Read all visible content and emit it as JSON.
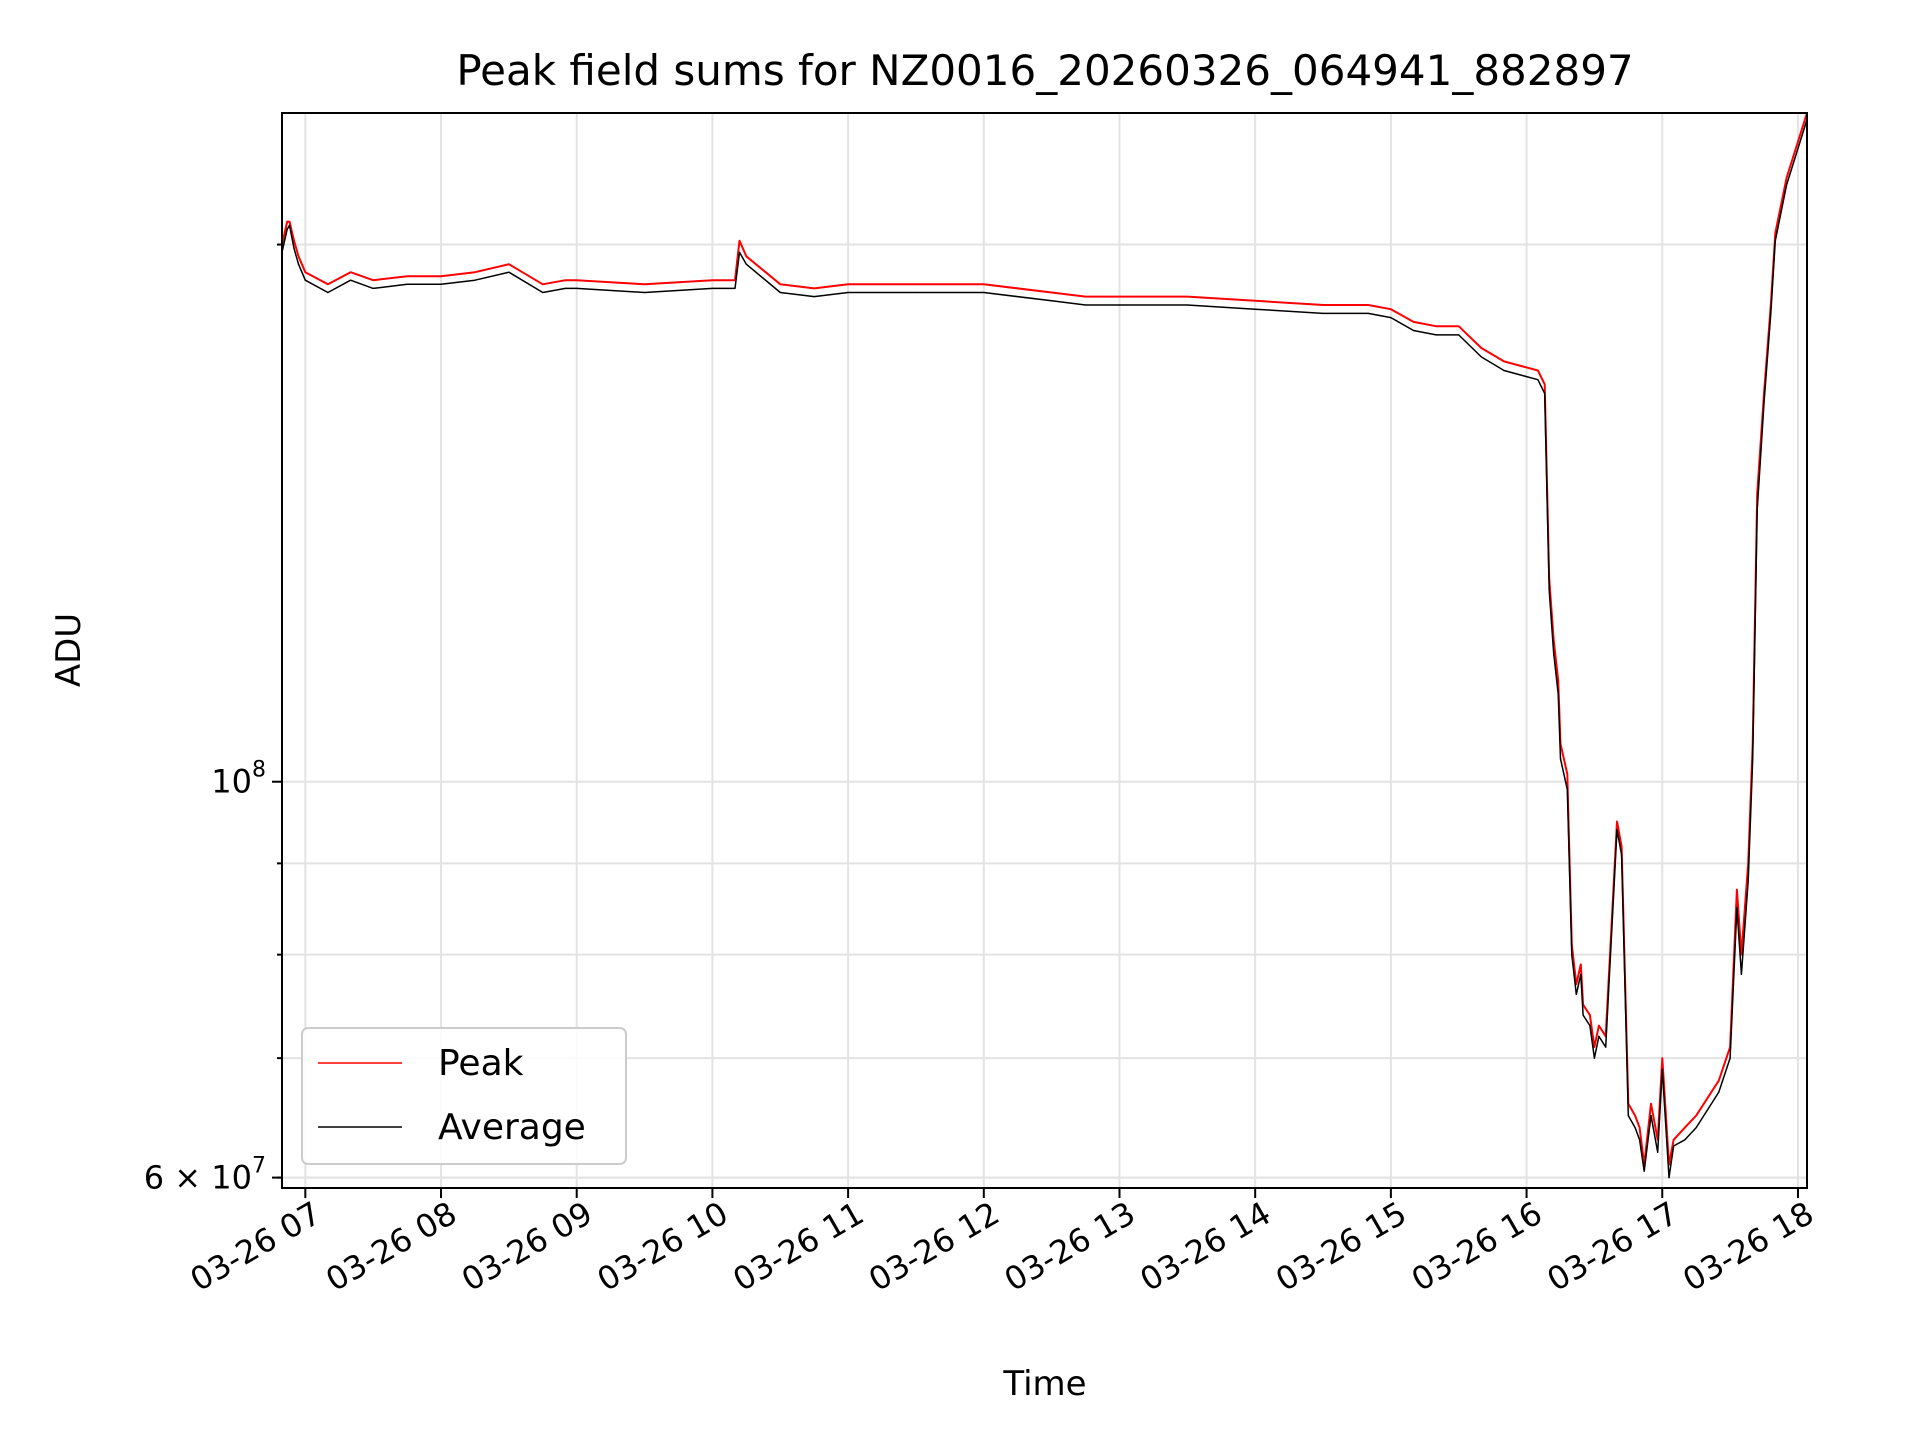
{
  "chart_data": {
    "type": "line",
    "title": "Peak field sums for NZ0016_20260326_064941_882897",
    "xlabel": "Time",
    "ylabel": "ADU",
    "yscale": "log",
    "xlim": [
      "2026-03-26T06:49:41",
      "2026-03-26T18:04:00"
    ],
    "ylim": [
      59200000,
      237000000
    ],
    "grid": true,
    "legend_position": "lower-left",
    "x_ticks": [
      {
        "time": "2026-03-26T07:00:00",
        "label": "03-26 07"
      },
      {
        "time": "2026-03-26T08:00:00",
        "label": "03-26 08"
      },
      {
        "time": "2026-03-26T09:00:00",
        "label": "03-26 09"
      },
      {
        "time": "2026-03-26T10:00:00",
        "label": "03-26 10"
      },
      {
        "time": "2026-03-26T11:00:00",
        "label": "03-26 11"
      },
      {
        "time": "2026-03-26T12:00:00",
        "label": "03-26 12"
      },
      {
        "time": "2026-03-26T13:00:00",
        "label": "03-26 13"
      },
      {
        "time": "2026-03-26T14:00:00",
        "label": "03-26 14"
      },
      {
        "time": "2026-03-26T15:00:00",
        "label": "03-26 15"
      },
      {
        "time": "2026-03-26T16:00:00",
        "label": "03-26 16"
      },
      {
        "time": "2026-03-26T17:00:00",
        "label": "03-26 17"
      },
      {
        "time": "2026-03-26T18:00:00",
        "label": "03-26 18"
      }
    ],
    "y_major_ticks": [
      {
        "value": 100000000,
        "label_base": "10",
        "label_exp": "8"
      },
      {
        "value": 60000000,
        "label_mant": "6 × 10",
        "label_exp": "7"
      }
    ],
    "y_minor_ticks": [
      60000000,
      70000000,
      80000000,
      90000000,
      200000000
    ],
    "series": [
      {
        "name": "Peak",
        "color": "#ff0000",
        "x": [
          "2026-03-26T06:49:41",
          "2026-03-26T06:52:00",
          "2026-03-26T06:53:00",
          "2026-03-26T06:55:00",
          "2026-03-26T06:57:00",
          "2026-03-26T07:00:00",
          "2026-03-26T07:10:00",
          "2026-03-26T07:20:00",
          "2026-03-26T07:30:00",
          "2026-03-26T07:45:00",
          "2026-03-26T08:00:00",
          "2026-03-26T08:15:00",
          "2026-03-26T08:30:00",
          "2026-03-26T08:45:00",
          "2026-03-26T08:55:00",
          "2026-03-26T09:00:00",
          "2026-03-26T09:30:00",
          "2026-03-26T10:00:00",
          "2026-03-26T10:10:00",
          "2026-03-26T10:12:00",
          "2026-03-26T10:15:00",
          "2026-03-26T10:30:00",
          "2026-03-26T10:45:00",
          "2026-03-26T11:00:00",
          "2026-03-26T11:30:00",
          "2026-03-26T12:00:00",
          "2026-03-26T12:30:00",
          "2026-03-26T12:45:00",
          "2026-03-26T13:00:00",
          "2026-03-26T13:30:00",
          "2026-03-26T14:00:00",
          "2026-03-26T14:30:00",
          "2026-03-26T14:50:00",
          "2026-03-26T15:00:00",
          "2026-03-26T15:10:00",
          "2026-03-26T15:20:00",
          "2026-03-26T15:30:00",
          "2026-03-26T15:40:00",
          "2026-03-26T15:50:00",
          "2026-03-26T16:05:00",
          "2026-03-26T16:08:00",
          "2026-03-26T16:10:00",
          "2026-03-26T16:12:00",
          "2026-03-26T16:14:00",
          "2026-03-26T16:15:00",
          "2026-03-26T16:18:00",
          "2026-03-26T16:20:00",
          "2026-03-26T16:22:00",
          "2026-03-26T16:24:00",
          "2026-03-26T16:25:00",
          "2026-03-26T16:28:00",
          "2026-03-26T16:30:00",
          "2026-03-26T16:32:00",
          "2026-03-26T16:35:00",
          "2026-03-26T16:40:00",
          "2026-03-26T16:42:00",
          "2026-03-26T16:45:00",
          "2026-03-26T16:48:00",
          "2026-03-26T16:50:00",
          "2026-03-26T16:52:00",
          "2026-03-26T16:55:00",
          "2026-03-26T16:58:00",
          "2026-03-26T17:00:00",
          "2026-03-26T17:03:00",
          "2026-03-26T17:05:00",
          "2026-03-26T17:10:00",
          "2026-03-26T17:15:00",
          "2026-03-26T17:25:00",
          "2026-03-26T17:30:00",
          "2026-03-26T17:33:00",
          "2026-03-26T17:35:00",
          "2026-03-26T17:38:00",
          "2026-03-26T17:40:00",
          "2026-03-26T17:42:00",
          "2026-03-26T17:45:00",
          "2026-03-26T17:48:00",
          "2026-03-26T17:50:00",
          "2026-03-26T17:55:00",
          "2026-03-26T18:04:00"
        ],
        "values": [
          200000000,
          206000000,
          206000000,
          201000000,
          197000000,
          193000000,
          190000000,
          193000000,
          191000000,
          192000000,
          192000000,
          193000000,
          195000000,
          190000000,
          191000000,
          191000000,
          190000000,
          191000000,
          191000000,
          201000000,
          197000000,
          190000000,
          189000000,
          190000000,
          190000000,
          190000000,
          188000000,
          187000000,
          187000000,
          187000000,
          186000000,
          185000000,
          185000000,
          184000000,
          181000000,
          180000000,
          180000000,
          175000000,
          172000000,
          170000000,
          167000000,
          130000000,
          120000000,
          114000000,
          105000000,
          101000000,
          81000000,
          77000000,
          79000000,
          75000000,
          74000000,
          71000000,
          73000000,
          72000000,
          95000000,
          92000000,
          66000000,
          65000000,
          64000000,
          61000000,
          66000000,
          63000000,
          70000000,
          61000000,
          63000000,
          64000000,
          65000000,
          68000000,
          71000000,
          87000000,
          80000000,
          90000000,
          105000000,
          145000000,
          165000000,
          185000000,
          203000000,
          218000000,
          237000000
        ]
      },
      {
        "name": "Average",
        "color": "#000000",
        "x": [
          "2026-03-26T06:49:41",
          "2026-03-26T06:52:00",
          "2026-03-26T06:53:00",
          "2026-03-26T06:55:00",
          "2026-03-26T06:57:00",
          "2026-03-26T07:00:00",
          "2026-03-26T07:10:00",
          "2026-03-26T07:20:00",
          "2026-03-26T07:30:00",
          "2026-03-26T07:45:00",
          "2026-03-26T08:00:00",
          "2026-03-26T08:15:00",
          "2026-03-26T08:30:00",
          "2026-03-26T08:45:00",
          "2026-03-26T08:55:00",
          "2026-03-26T09:00:00",
          "2026-03-26T09:30:00",
          "2026-03-26T10:00:00",
          "2026-03-26T10:10:00",
          "2026-03-26T10:12:00",
          "2026-03-26T10:15:00",
          "2026-03-26T10:30:00",
          "2026-03-26T10:45:00",
          "2026-03-26T11:00:00",
          "2026-03-26T11:30:00",
          "2026-03-26T12:00:00",
          "2026-03-26T12:30:00",
          "2026-03-26T12:45:00",
          "2026-03-26T13:00:00",
          "2026-03-26T13:30:00",
          "2026-03-26T14:00:00",
          "2026-03-26T14:30:00",
          "2026-03-26T14:50:00",
          "2026-03-26T15:00:00",
          "2026-03-26T15:10:00",
          "2026-03-26T15:20:00",
          "2026-03-26T15:30:00",
          "2026-03-26T15:40:00",
          "2026-03-26T15:50:00",
          "2026-03-26T16:05:00",
          "2026-03-26T16:08:00",
          "2026-03-26T16:10:00",
          "2026-03-26T16:12:00",
          "2026-03-26T16:14:00",
          "2026-03-26T16:15:00",
          "2026-03-26T16:18:00",
          "2026-03-26T16:20:00",
          "2026-03-26T16:22:00",
          "2026-03-26T16:24:00",
          "2026-03-26T16:25:00",
          "2026-03-26T16:28:00",
          "2026-03-26T16:30:00",
          "2026-03-26T16:32:00",
          "2026-03-26T16:35:00",
          "2026-03-26T16:40:00",
          "2026-03-26T16:42:00",
          "2026-03-26T16:45:00",
          "2026-03-26T16:48:00",
          "2026-03-26T16:50:00",
          "2026-03-26T16:52:00",
          "2026-03-26T16:55:00",
          "2026-03-26T16:58:00",
          "2026-03-26T17:00:00",
          "2026-03-26T17:03:00",
          "2026-03-26T17:05:00",
          "2026-03-26T17:10:00",
          "2026-03-26T17:15:00",
          "2026-03-26T17:25:00",
          "2026-03-26T17:30:00",
          "2026-03-26T17:33:00",
          "2026-03-26T17:35:00",
          "2026-03-26T17:38:00",
          "2026-03-26T17:40:00",
          "2026-03-26T17:42:00",
          "2026-03-26T17:45:00",
          "2026-03-26T17:48:00",
          "2026-03-26T17:50:00",
          "2026-03-26T17:55:00",
          "2026-03-26T18:04:00"
        ],
        "values": [
          198000000,
          204000000,
          205000000,
          199000000,
          195000000,
          191000000,
          188000000,
          191000000,
          189000000,
          190000000,
          190000000,
          191000000,
          193000000,
          188000000,
          189000000,
          189000000,
          188000000,
          189000000,
          189000000,
          198000000,
          195000000,
          188000000,
          187000000,
          188000000,
          188000000,
          188000000,
          186000000,
          185000000,
          185000000,
          185000000,
          184000000,
          183000000,
          183000000,
          182000000,
          179000000,
          178000000,
          178000000,
          173000000,
          170000000,
          168000000,
          165000000,
          128000000,
          118000000,
          112000000,
          103000000,
          99000000,
          80000000,
          76000000,
          78000000,
          74000000,
          73000000,
          70000000,
          72000000,
          71000000,
          94000000,
          91000000,
          65000000,
          64000000,
          63000000,
          60500000,
          65000000,
          62000000,
          69000000,
          60000000,
          62500000,
          63000000,
          64000000,
          67000000,
          70000000,
          85000000,
          78000000,
          88000000,
          103000000,
          142000000,
          163000000,
          183000000,
          201000000,
          216000000,
          235000000
        ]
      }
    ]
  }
}
